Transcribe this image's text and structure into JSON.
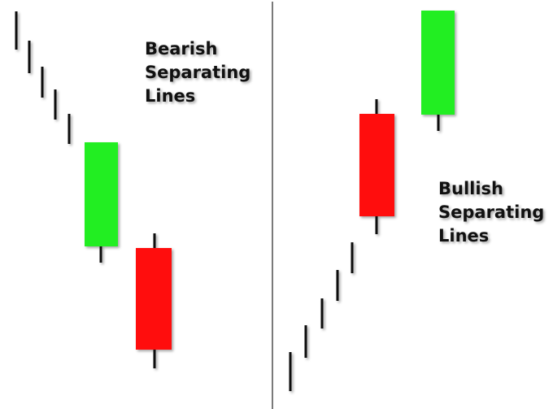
{
  "bearish": {
    "lines": [
      "Bearish",
      "Separating",
      "Lines"
    ],
    "colors": {
      "up_candle": "#22ee22",
      "down_candle": "#ff1111",
      "wick": "#111111"
    }
  },
  "bullish": {
    "lines": [
      "Bullish",
      "Separating",
      "Lines"
    ],
    "colors": {
      "up_candle": "#22ee22",
      "down_candle": "#ff1111",
      "wick": "#111111"
    }
  },
  "divider": {
    "color": "#222222"
  }
}
